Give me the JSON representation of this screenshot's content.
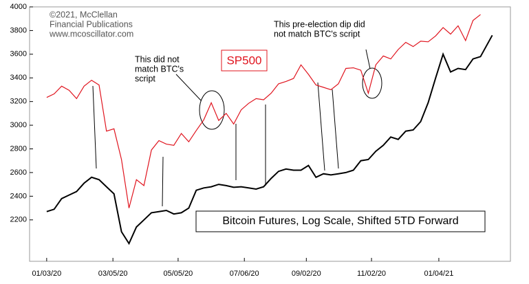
{
  "chart_data": {
    "type": "line",
    "title": "Bitcoin Futures, Log Scale, Shifted 5TD Forward",
    "annotations": [
      [
        "©2021, McClellan",
        "Financial Publications",
        "www.mcoscillator.com"
      ],
      [
        "This did not",
        "match BTC's",
        "script"
      ],
      [
        "This pre-election dip did",
        "not match BTC's script"
      ]
    ],
    "x": [
      "2020-01-03",
      "2020-01-10",
      "2020-01-17",
      "2020-01-24",
      "2020-01-31",
      "2020-02-07",
      "2020-02-14",
      "2020-02-21",
      "2020-02-28",
      "2020-03-06",
      "2020-03-13",
      "2020-03-20",
      "2020-03-27",
      "2020-04-03",
      "2020-04-10",
      "2020-04-17",
      "2020-04-24",
      "2020-05-01",
      "2020-05-08",
      "2020-05-15",
      "2020-05-22",
      "2020-05-29",
      "2020-06-05",
      "2020-06-12",
      "2020-06-19",
      "2020-06-26",
      "2020-07-03",
      "2020-07-10",
      "2020-07-17",
      "2020-07-24",
      "2020-07-31",
      "2020-08-07",
      "2020-08-14",
      "2020-08-21",
      "2020-08-28",
      "2020-09-04",
      "2020-09-11",
      "2020-09-18",
      "2020-09-25",
      "2020-10-02",
      "2020-10-09",
      "2020-10-16",
      "2020-10-23",
      "2020-10-30",
      "2020-11-06",
      "2020-11-13",
      "2020-11-20",
      "2020-11-27",
      "2020-12-04",
      "2020-12-11",
      "2020-12-18",
      "2020-12-25",
      "2021-01-01",
      "2021-01-08",
      "2021-01-15",
      "2021-01-22",
      "2021-01-29",
      "2021-02-05",
      "2021-02-12",
      "2021-02-23"
    ],
    "series": [
      {
        "name": "SP500",
        "color": "#e0141e",
        "values": [
          3235,
          3265,
          3330,
          3295,
          3225,
          3330,
          3380,
          3340,
          2950,
          2970,
          2710,
          2300,
          2540,
          2490,
          2790,
          2870,
          2840,
          2830,
          2930,
          2860,
          2955,
          3045,
          3190,
          3040,
          3100,
          3010,
          3130,
          3185,
          3225,
          3215,
          3270,
          3350,
          3370,
          3395,
          3510,
          3430,
          3340,
          3320,
          3300,
          3350,
          3480,
          3485,
          3465,
          3270,
          3510,
          3585,
          3560,
          3640,
          3700,
          3665,
          3710,
          3705,
          3755,
          3825,
          3770,
          3840,
          3715,
          3885,
          3935,
          null
        ]
      },
      {
        "name": "Bitcoin Futures",
        "color": "#000000",
        "values": [
          2270,
          2290,
          2380,
          2410,
          2440,
          2510,
          2560,
          2540,
          2480,
          2420,
          2100,
          2000,
          2140,
          2200,
          2260,
          2270,
          2280,
          2250,
          2260,
          2300,
          2450,
          2470,
          2480,
          2500,
          2490,
          2475,
          2480,
          2470,
          2460,
          2480,
          2550,
          2610,
          2630,
          2620,
          2620,
          2660,
          2560,
          2590,
          2580,
          2590,
          2600,
          2620,
          2700,
          2710,
          2780,
          2830,
          2900,
          2880,
          2950,
          2960,
          3030,
          3190,
          3400,
          3600,
          3450,
          3480,
          3470,
          3560,
          3580,
          3760
        ]
      }
    ],
    "xlim": [
      "2019-12-18",
      "2021-03-12"
    ],
    "xticks": [
      {
        "value": "2020-01-03",
        "label": "01/03/20"
      },
      {
        "value": "2020-03-05",
        "label": "03/05/20"
      },
      {
        "value": "2020-05-05",
        "label": "05/05/20"
      },
      {
        "value": "2020-07-06",
        "label": "07/06/20"
      },
      {
        "value": "2020-09-02",
        "label": "09/02/20"
      },
      {
        "value": "2020-11-02",
        "label": "11/02/20"
      },
      {
        "value": "2021-01-04",
        "label": "01/04/21"
      }
    ],
    "ylim": [
      1850,
      4000
    ],
    "yticks": [
      2200,
      2400,
      2600,
      2800,
      3000,
      3200,
      3400,
      3600,
      3800,
      4000
    ]
  }
}
